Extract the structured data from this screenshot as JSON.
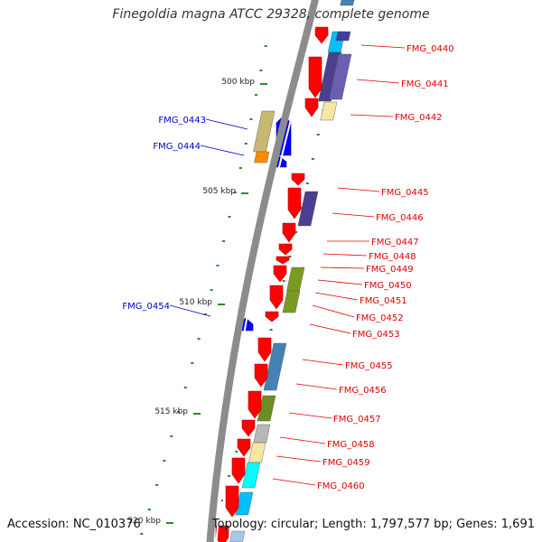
{
  "title": "Finegoldia magna ATCC 29328, complete genome",
  "accession": "Accession: NC_010376",
  "summary": "Topology: circular; Length: 1,797,577 bp; Genes: 1,691",
  "colors": {
    "backbone": "#8c8c8c",
    "forward_label": "#e00000",
    "reverse_label": "#0000cc",
    "tick": "#2a8a2a",
    "red_arrow": "#ff0000",
    "blue_arrow": "#0000ff"
  },
  "scale_labels": [
    "500 kbp",
    "505 kbp",
    "510 kbp",
    "515 kbp",
    "520 kbp"
  ],
  "forward_labels": [
    "FMG_0440",
    "FMG_0441",
    "FMG_0442",
    "FMG_0445",
    "FMG_0446",
    "FMG_0447",
    "FMG_0448",
    "FMG_0449",
    "FMG_0450",
    "FMG_0451",
    "FMG_0452",
    "FMG_0453",
    "FMG_0455",
    "FMG_0456",
    "FMG_0457",
    "FMG_0458",
    "FMG_0459",
    "FMG_0460"
  ],
  "reverse_labels": [
    "FMG_0443",
    "FMG_0444",
    "FMG_0454"
  ]
}
